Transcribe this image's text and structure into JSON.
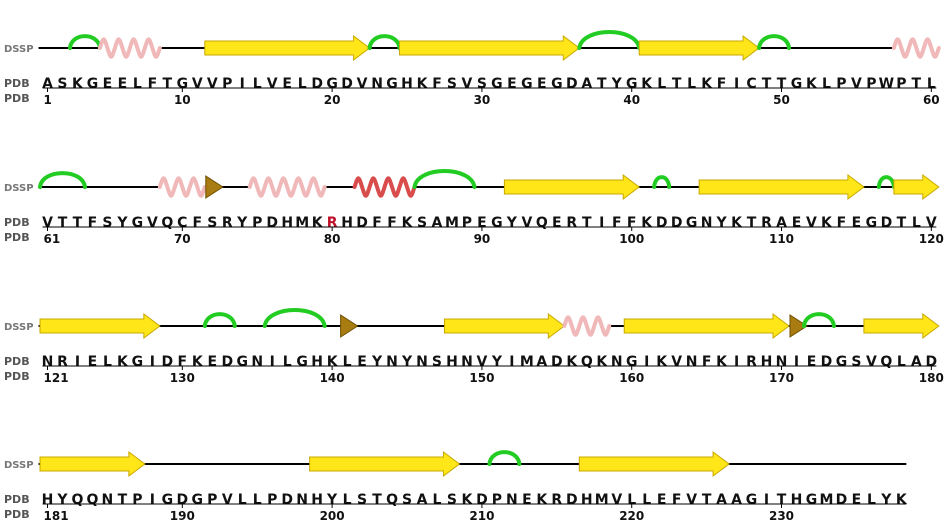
{
  "labels": {
    "dssp": "DSSP",
    "pdb": "PDB"
  },
  "colors": {
    "backbone": "#000000",
    "strand_fill": "#ffe619",
    "strand_stroke": "#c8a800",
    "turn": "#22cc22",
    "bend": "#a87c10",
    "helix_light": "#f0b8b8",
    "helix_dark": "#d84c4c",
    "highlight_residue": "#c0102a"
  },
  "highlight_positions": [
    80
  ],
  "rows": [
    {
      "start": 1,
      "sequence": "ASKGEELFTGVVPILVELDGDVNGHKFSVSGEGEGDATYGKLTLKFICTTGKLPVPWPTL",
      "ticks": [
        1,
        10,
        20,
        30,
        40,
        50,
        60
      ],
      "elements": [
        {
          "type": "turn",
          "from": 3,
          "to": 4
        },
        {
          "type": "helix_light",
          "from": 5,
          "to": 8
        },
        {
          "type": "strand",
          "from": 12,
          "to": 22
        },
        {
          "type": "turn",
          "from": 23,
          "to": 24
        },
        {
          "type": "strand",
          "from": 25,
          "to": 36
        },
        {
          "type": "turn",
          "from": 37,
          "to": 40
        },
        {
          "type": "strand",
          "from": 41,
          "to": 48
        },
        {
          "type": "turn",
          "from": 49,
          "to": 50
        },
        {
          "type": "helix_light",
          "from": 58,
          "to": 60
        }
      ]
    },
    {
      "start": 61,
      "sequence": "VTTFSYGVQCFSRYPDHMKRHDFFKSAMPEGYVQERTIFFKDDGNYKTRAEVKFEGDTLV",
      "ticks": [
        61,
        70,
        80,
        90,
        100,
        110,
        120
      ],
      "elements": [
        {
          "type": "turn",
          "from": 61,
          "to": 63
        },
        {
          "type": "helix_light",
          "from": 69,
          "to": 71
        },
        {
          "type": "bend",
          "from": 72,
          "to": 72
        },
        {
          "type": "helix_light",
          "from": 75,
          "to": 79
        },
        {
          "type": "helix_dark",
          "from": 82,
          "to": 85
        },
        {
          "type": "turn",
          "from": 86,
          "to": 89
        },
        {
          "type": "strand",
          "from": 92,
          "to": 100
        },
        {
          "type": "turn",
          "from": 102,
          "to": 102
        },
        {
          "type": "strand",
          "from": 105,
          "to": 115
        },
        {
          "type": "turn",
          "from": 117,
          "to": 117
        },
        {
          "type": "strand",
          "from": 118,
          "to": 120
        }
      ]
    },
    {
      "start": 121,
      "sequence": "NRIELKGIDFKEDGNILGHKLEYNYNSHNVYIMADKQKNGIKVNFKIRHNIEDGSVQLAD",
      "ticks": [
        121,
        130,
        140,
        150,
        160,
        170,
        180
      ],
      "elements": [
        {
          "type": "strand",
          "from": 121,
          "to": 128
        },
        {
          "type": "turn",
          "from": 132,
          "to": 133
        },
        {
          "type": "turn",
          "from": 136,
          "to": 139
        },
        {
          "type": "bend",
          "from": 141,
          "to": 141
        },
        {
          "type": "strand",
          "from": 148,
          "to": 155
        },
        {
          "type": "helix_light",
          "from": 156,
          "to": 158
        },
        {
          "type": "strand",
          "from": 160,
          "to": 170
        },
        {
          "type": "bend",
          "from": 171,
          "to": 171
        },
        {
          "type": "turn",
          "from": 172,
          "to": 173
        },
        {
          "type": "strand",
          "from": 176,
          "to": 180
        }
      ]
    },
    {
      "start": 181,
      "sequence": "HYQQNTPIGDGPVLLPDNHYLSTQSALSKDPNEKRDHMVLLEFVTAAGITHGMDELYK",
      "ticks": [
        181,
        190,
        200,
        210,
        220,
        230
      ],
      "elements": [
        {
          "type": "strand",
          "from": 181,
          "to": 187
        },
        {
          "type": "strand",
          "from": 199,
          "to": 208
        },
        {
          "type": "turn",
          "from": 211,
          "to": 212
        },
        {
          "type": "strand",
          "from": 217,
          "to": 226
        }
      ]
    }
  ]
}
